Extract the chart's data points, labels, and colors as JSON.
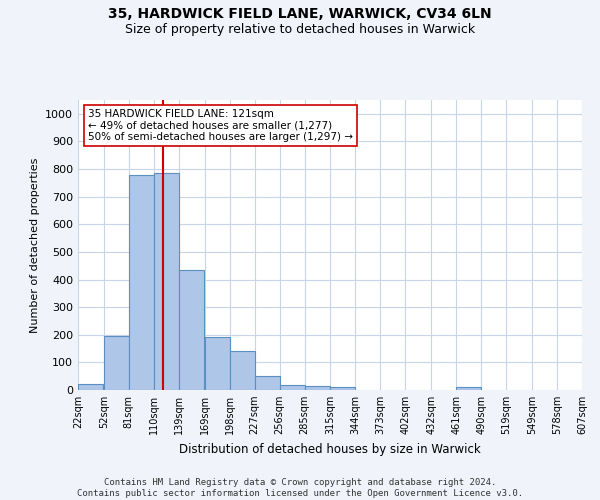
{
  "title1": "35, HARDWICK FIELD LANE, WARWICK, CV34 6LN",
  "title2": "Size of property relative to detached houses in Warwick",
  "xlabel": "Distribution of detached houses by size in Warwick",
  "ylabel": "Number of detached properties",
  "bar_left_edges": [
    22,
    52,
    81,
    110,
    139,
    169,
    198,
    227,
    256,
    285,
    315,
    344,
    373,
    402,
    432,
    461,
    490,
    519,
    549,
    578
  ],
  "bar_widths": [
    29,
    29,
    29,
    29,
    29,
    29,
    29,
    29,
    29,
    29,
    29,
    29,
    29,
    29,
    29,
    29,
    29,
    29,
    29,
    29
  ],
  "bar_heights": [
    20,
    195,
    780,
    785,
    435,
    192,
    140,
    50,
    18,
    13,
    12,
    0,
    0,
    0,
    0,
    10,
    0,
    0,
    0,
    0
  ],
  "bar_color": "#aec6e8",
  "bar_edge_color": "#5a8fc2",
  "tick_labels": [
    "22sqm",
    "52sqm",
    "81sqm",
    "110sqm",
    "139sqm",
    "169sqm",
    "198sqm",
    "227sqm",
    "256sqm",
    "285sqm",
    "315sqm",
    "344sqm",
    "373sqm",
    "402sqm",
    "432sqm",
    "461sqm",
    "490sqm",
    "519sqm",
    "549sqm",
    "578sqm",
    "607sqm"
  ],
  "vline_x": 121,
  "vline_color": "#cc0000",
  "annotation_text": "35 HARDWICK FIELD LANE: 121sqm\n← 49% of detached houses are smaller (1,277)\n50% of semi-detached houses are larger (1,297) →",
  "annotation_box_color": "#ffffff",
  "annotation_box_edge": "#cc0000",
  "ylim": [
    0,
    1050
  ],
  "yticks": [
    0,
    100,
    200,
    300,
    400,
    500,
    600,
    700,
    800,
    900,
    1000
  ],
  "footer_text": "Contains HM Land Registry data © Crown copyright and database right 2024.\nContains public sector information licensed under the Open Government Licence v3.0.",
  "bg_color": "#f0f4fa",
  "plot_bg_color": "#ffffff",
  "grid_color": "#c8d4e8"
}
